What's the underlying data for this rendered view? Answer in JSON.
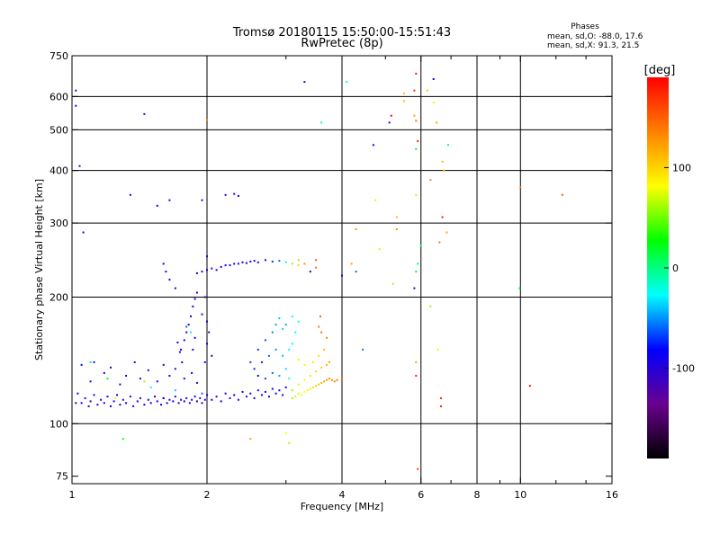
{
  "chart_data": {
    "type": "scatter",
    "title_line1": "Tromsø 20180115 15:50:00-15:51:43",
    "title_line2": "RwPretec (8p)",
    "stats": {
      "heading": "Phases",
      "line1": "mean, sd,O: -88.0, 17.6",
      "line2": "mean, sd,X:  91.3, 21.5"
    },
    "xlabel": "Frequency [MHz]",
    "ylabel": "Stationary phase Virtual Height [km]",
    "xscale": "log",
    "yscale": "log",
    "xlim": [
      1,
      16
    ],
    "ylim": [
      72,
      750
    ],
    "xticks": [
      1,
      2,
      4,
      6,
      8,
      10,
      16
    ],
    "xtick_labels": [
      "1",
      "2",
      "4",
      "6",
      "8",
      "10",
      "16"
    ],
    "xgrid": [
      2,
      4,
      6,
      8,
      10
    ],
    "xminor": [
      3,
      5,
      7,
      9,
      12,
      14
    ],
    "yticks": [
      75,
      100,
      200,
      300,
      400,
      500,
      600,
      750
    ],
    "ytick_labels": [
      "75",
      "100",
      "200",
      "300",
      "400",
      "500",
      "600",
      "750"
    ],
    "ygrid": [
      100,
      200,
      300,
      400,
      500,
      600
    ],
    "colorbar": {
      "label": "[deg]",
      "range": [
        -190,
        190
      ],
      "ticks": [
        100,
        0,
        -100
      ],
      "tick_labels": [
        "100",
        "0",
        "-100"
      ],
      "stops": [
        "#000000",
        "#6a008e",
        "#0000ff",
        "#00ffff",
        "#00ff00",
        "#ffff00",
        "#ff8000",
        "#ff0000"
      ]
    },
    "points": [
      [
        1.03,
        118,
        -95
      ],
      [
        1.05,
        112,
        -92
      ],
      [
        1.07,
        115,
        -100
      ],
      [
        1.09,
        110,
        -90
      ],
      [
        1.1,
        113,
        -95
      ],
      [
        1.12,
        117,
        -88
      ],
      [
        1.14,
        111,
        -97
      ],
      [
        1.16,
        114,
        -92
      ],
      [
        1.18,
        112,
        -90
      ],
      [
        1.2,
        116,
        -98
      ],
      [
        1.22,
        110,
        -94
      ],
      [
        1.24,
        113,
        -89
      ],
      [
        1.26,
        117,
        -95
      ],
      [
        1.28,
        111,
        -100
      ],
      [
        1.3,
        114,
        -92
      ],
      [
        1.32,
        112,
        -88
      ],
      [
        1.35,
        116,
        -95
      ],
      [
        1.37,
        110,
        -97
      ],
      [
        1.4,
        113,
        -90
      ],
      [
        1.42,
        115,
        -93
      ],
      [
        1.45,
        111,
        -96
      ],
      [
        1.48,
        114,
        -88
      ],
      [
        1.5,
        112,
        -91
      ],
      [
        1.53,
        116,
        -95
      ],
      [
        1.55,
        113,
        -92
      ],
      [
        1.58,
        111,
        -99
      ],
      [
        1.6,
        115,
        -90
      ],
      [
        1.63,
        112,
        -94
      ],
      [
        1.65,
        114,
        -88
      ],
      [
        1.68,
        113,
        -95
      ],
      [
        1.7,
        116,
        -92
      ],
      [
        1.73,
        112,
        -97
      ],
      [
        1.75,
        114,
        -90
      ],
      [
        1.78,
        113,
        -93
      ],
      [
        1.8,
        115,
        -96
      ],
      [
        1.83,
        112,
        -89
      ],
      [
        1.85,
        114,
        -92
      ],
      [
        1.88,
        116,
        -95
      ],
      [
        1.9,
        113,
        -90
      ],
      [
        1.93,
        115,
        -94
      ],
      [
        1.95,
        112,
        -91
      ],
      [
        1.98,
        114,
        -96
      ],
      [
        2.0,
        117,
        -92
      ],
      [
        2.05,
        114,
        -88
      ],
      [
        2.1,
        116,
        -94
      ],
      [
        2.15,
        113,
        -90
      ],
      [
        2.2,
        118,
        -93
      ],
      [
        2.25,
        115,
        -96
      ],
      [
        2.3,
        117,
        -88
      ],
      [
        2.35,
        114,
        -92
      ],
      [
        2.4,
        119,
        -95
      ],
      [
        2.45,
        116,
        -90
      ],
      [
        2.5,
        118,
        -85
      ],
      [
        2.55,
        115,
        -88
      ],
      [
        2.6,
        120,
        -92
      ],
      [
        2.65,
        117,
        -86
      ],
      [
        2.7,
        119,
        -90
      ],
      [
        2.75,
        116,
        -84
      ],
      [
        2.8,
        121,
        -88
      ],
      [
        2.85,
        118,
        -82
      ],
      [
        2.9,
        120,
        -86
      ],
      [
        2.95,
        117,
        -80
      ],
      [
        3.0,
        122,
        -84
      ],
      [
        1.05,
        138,
        -95
      ],
      [
        1.1,
        126,
        -90
      ],
      [
        1.12,
        140,
        -100
      ],
      [
        1.18,
        132,
        -92
      ],
      [
        1.22,
        136,
        -95
      ],
      [
        1.28,
        124,
        -97
      ],
      [
        1.32,
        130,
        -90
      ],
      [
        1.38,
        140,
        -94
      ],
      [
        1.42,
        128,
        -90
      ],
      [
        1.48,
        134,
        -98
      ],
      [
        1.55,
        126,
        -92
      ],
      [
        1.6,
        138,
        -95
      ],
      [
        1.65,
        130,
        -90
      ],
      [
        1.7,
        135,
        -96
      ],
      [
        1.78,
        128,
        -88
      ],
      [
        1.85,
        132,
        -94
      ],
      [
        1.1,
        140,
        5
      ],
      [
        1.2,
        128,
        30
      ],
      [
        1.5,
        122,
        -20
      ],
      [
        1.25,
        115,
        90
      ],
      [
        1.45,
        126,
        60
      ],
      [
        1.7,
        120,
        -40
      ],
      [
        1.9,
        125,
        -110
      ],
      [
        1.95,
        118,
        -60
      ],
      [
        1.75,
        150,
        -92
      ],
      [
        1.78,
        158,
        -96
      ],
      [
        1.8,
        165,
        -90
      ],
      [
        1.82,
        172,
        -94
      ],
      [
        1.84,
        180,
        -88
      ],
      [
        1.86,
        190,
        -92
      ],
      [
        1.88,
        198,
        -96
      ],
      [
        1.9,
        205,
        -90
      ],
      [
        1.8,
        170,
        -60
      ],
      [
        1.84,
        165,
        -30
      ],
      [
        1.76,
        140,
        -95
      ],
      [
        1.74,
        148,
        -90
      ],
      [
        1.72,
        156,
        -94
      ],
      [
        1.86,
        150,
        -100
      ],
      [
        1.88,
        160,
        -85
      ],
      [
        1.7,
        210,
        -90
      ],
      [
        1.65,
        220,
        -94
      ],
      [
        1.9,
        228,
        -92
      ],
      [
        1.95,
        230,
        -95
      ],
      [
        2.0,
        232,
        -90
      ],
      [
        2.05,
        234,
        -94
      ],
      [
        2.1,
        232,
        -92
      ],
      [
        2.15,
        236,
        -96
      ],
      [
        2.2,
        238,
        -90
      ],
      [
        2.25,
        238,
        -88
      ],
      [
        2.3,
        240,
        -92
      ],
      [
        2.35,
        240,
        -86
      ],
      [
        2.4,
        242,
        -90
      ],
      [
        2.45,
        241,
        -84
      ],
      [
        2.5,
        243,
        -88
      ],
      [
        2.55,
        244,
        -92
      ],
      [
        2.6,
        242,
        -80
      ],
      [
        2.7,
        245,
        -86
      ],
      [
        2.8,
        243,
        -70
      ],
      [
        2.9,
        244,
        -60
      ],
      [
        3.0,
        242,
        -30
      ],
      [
        3.1,
        240,
        60
      ],
      [
        3.2,
        238,
        100
      ],
      [
        1.6,
        240,
        -96
      ],
      [
        1.62,
        230,
        -90
      ],
      [
        2.0,
        175,
        -95
      ],
      [
        1.95,
        182,
        -90
      ],
      [
        2.02,
        165,
        -92
      ],
      [
        2.0,
        155,
        -88
      ],
      [
        2.05,
        145,
        -94
      ],
      [
        1.98,
        200,
        -96
      ],
      [
        2.0,
        250,
        -92
      ],
      [
        1.98,
        140,
        -80
      ],
      [
        2.6,
        150,
        -70
      ],
      [
        2.7,
        158,
        -65
      ],
      [
        2.8,
        165,
        -55
      ],
      [
        2.85,
        172,
        -48
      ],
      [
        2.9,
        178,
        -40
      ],
      [
        2.95,
        168,
        -35
      ],
      [
        3.0,
        172,
        -45
      ],
      [
        3.1,
        180,
        -30
      ],
      [
        3.15,
        165,
        -25
      ],
      [
        3.2,
        175,
        -20
      ],
      [
        2.65,
        140,
        -75
      ],
      [
        2.75,
        145,
        -62
      ],
      [
        2.85,
        150,
        -50
      ],
      [
        2.95,
        145,
        -40
      ],
      [
        3.05,
        150,
        -30
      ],
      [
        3.1,
        155,
        -20
      ],
      [
        2.5,
        140,
        -70
      ],
      [
        2.55,
        135,
        -75
      ],
      [
        2.6,
        130,
        -80
      ],
      [
        2.7,
        128,
        -68
      ],
      [
        2.8,
        132,
        -60
      ],
      [
        2.9,
        130,
        -45
      ],
      [
        3.0,
        135,
        -35
      ],
      [
        3.05,
        128,
        -25
      ],
      [
        3.1,
        115,
        60
      ],
      [
        3.15,
        116,
        70
      ],
      [
        3.2,
        118,
        75
      ],
      [
        3.25,
        117,
        80
      ],
      [
        3.3,
        119,
        82
      ],
      [
        3.35,
        120,
        85
      ],
      [
        3.4,
        121,
        88
      ],
      [
        3.45,
        122,
        95
      ],
      [
        3.5,
        123,
        105
      ],
      [
        3.55,
        124,
        110
      ],
      [
        3.6,
        125,
        115
      ],
      [
        3.65,
        126,
        120
      ],
      [
        3.7,
        127,
        125
      ],
      [
        3.75,
        128,
        128
      ],
      [
        3.8,
        127,
        132
      ],
      [
        3.85,
        126,
        135
      ],
      [
        3.9,
        127,
        138
      ],
      [
        4.0,
        128,
        140
      ],
      [
        3.1,
        120,
        55
      ],
      [
        3.2,
        124,
        70
      ],
      [
        3.3,
        127,
        85
      ],
      [
        3.4,
        130,
        95
      ],
      [
        3.5,
        133,
        100
      ],
      [
        3.6,
        136,
        108
      ],
      [
        3.7,
        138,
        115
      ],
      [
        3.45,
        140,
        92
      ],
      [
        3.55,
        145,
        98
      ],
      [
        3.3,
        138,
        80
      ],
      [
        3.2,
        142,
        75
      ],
      [
        3.75,
        140,
        120
      ],
      [
        3.65,
        150,
        112
      ],
      [
        3.55,
        170,
        140
      ],
      [
        3.6,
        165,
        145
      ],
      [
        3.58,
        180,
        150
      ],
      [
        3.5,
        235,
        140
      ],
      [
        3.5,
        245,
        150
      ],
      [
        3.3,
        240,
        130
      ],
      [
        3.2,
        245,
        110
      ],
      [
        3.7,
        160,
        135
      ],
      [
        3.0,
        95,
        80
      ],
      [
        3.05,
        90,
        60
      ],
      [
        2.5,
        92,
        120
      ],
      [
        1.3,
        92,
        20
      ],
      [
        1.6,
        115,
        -100
      ],
      [
        1.02,
        112,
        -100
      ],
      [
        1.02,
        620,
        -100
      ],
      [
        1.02,
        570,
        -90
      ],
      [
        1.04,
        410,
        -95
      ],
      [
        1.06,
        285,
        -98
      ],
      [
        1.45,
        545,
        -100
      ],
      [
        1.65,
        340,
        -95
      ],
      [
        1.35,
        350,
        -98
      ],
      [
        1.55,
        330,
        -92
      ],
      [
        1.95,
        340,
        -100
      ],
      [
        2.2,
        350,
        -95
      ],
      [
        2.3,
        352,
        -98
      ],
      [
        2.35,
        348,
        -90
      ],
      [
        2.0,
        528,
        130
      ],
      [
        3.3,
        650,
        -100
      ],
      [
        3.4,
        230,
        -95
      ],
      [
        3.6,
        520,
        -10
      ],
      [
        4.0,
        225,
        -85
      ],
      [
        4.1,
        650,
        -20
      ],
      [
        4.3,
        230,
        -60
      ],
      [
        4.45,
        150,
        -55
      ],
      [
        4.2,
        240,
        120
      ],
      [
        4.3,
        290,
        130
      ],
      [
        4.7,
        460,
        -100
      ],
      [
        4.75,
        340,
        90
      ],
      [
        5.1,
        520,
        -100
      ],
      [
        5.15,
        540,
        190
      ],
      [
        5.3,
        290,
        130
      ],
      [
        5.2,
        215,
        60
      ],
      [
        5.5,
        585,
        110
      ],
      [
        5.5,
        610,
        110
      ],
      [
        5.85,
        680,
        180
      ],
      [
        5.8,
        620,
        170
      ],
      [
        5.8,
        540,
        120
      ],
      [
        5.85,
        525,
        140
      ],
      [
        5.9,
        470,
        175
      ],
      [
        5.85,
        450,
        20
      ],
      [
        5.85,
        350,
        100
      ],
      [
        5.9,
        240,
        10
      ],
      [
        5.85,
        230,
        20
      ],
      [
        5.8,
        210,
        -100
      ],
      [
        5.85,
        140,
        120
      ],
      [
        5.85,
        130,
        175
      ],
      [
        5.9,
        78,
        160
      ],
      [
        6.0,
        265,
        10
      ],
      [
        6.4,
        660,
        -100
      ],
      [
        6.2,
        620,
        110
      ],
      [
        6.4,
        580,
        90
      ],
      [
        6.5,
        520,
        120
      ],
      [
        6.7,
        420,
        110
      ],
      [
        6.75,
        400,
        110
      ],
      [
        6.7,
        310,
        180
      ],
      [
        6.85,
        285,
        120
      ],
      [
        6.9,
        460,
        0
      ],
      [
        6.65,
        115,
        175
      ],
      [
        6.65,
        110,
        180
      ],
      [
        6.55,
        150,
        90
      ],
      [
        6.3,
        190,
        60
      ],
      [
        6.6,
        270,
        140
      ],
      [
        10.0,
        365,
        140
      ],
      [
        9.95,
        210,
        15
      ],
      [
        12.4,
        350,
        150
      ],
      [
        10.5,
        123,
        190
      ],
      [
        6.3,
        380,
        130
      ],
      [
        5.3,
        310,
        110
      ],
      [
        4.85,
        260,
        70
      ]
    ]
  }
}
